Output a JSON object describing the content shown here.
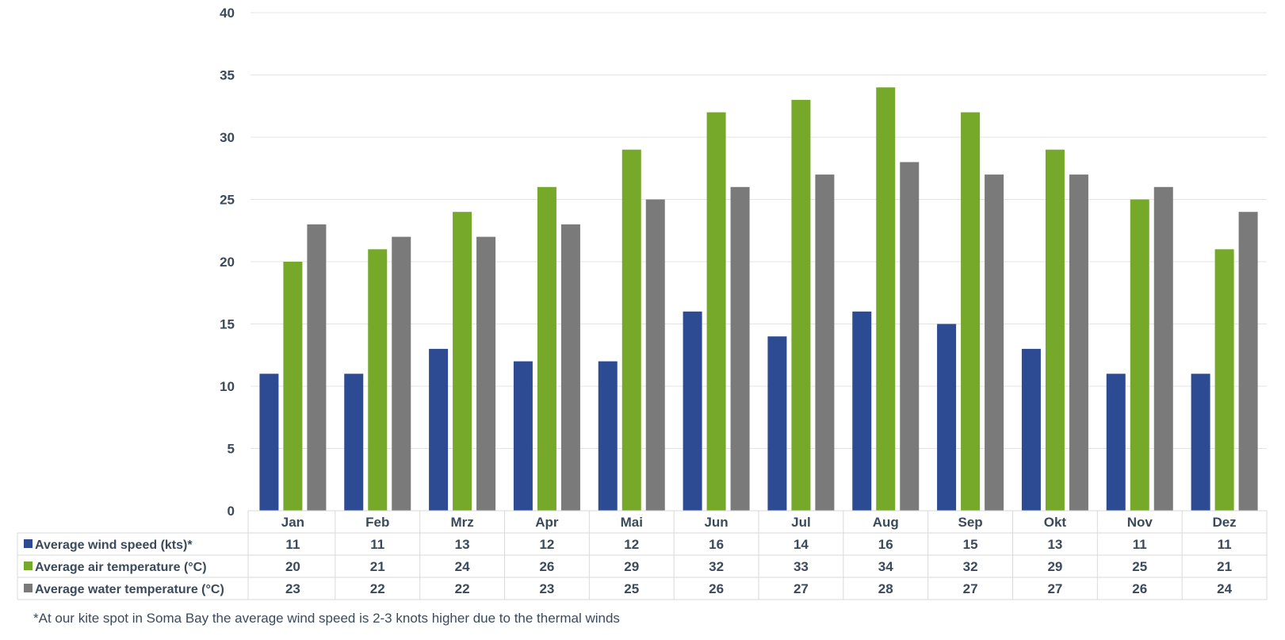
{
  "colors": {
    "wind": "#2c4b93",
    "air": "#76a82a",
    "water": "#7a7a7a",
    "text": "#3a4a5c",
    "grid": "#e3e3e3",
    "table_border": "#d9d9d9"
  },
  "chart_data": {
    "type": "bar",
    "categories": [
      "Jan",
      "Feb",
      "Mrz",
      "Apr",
      "Mai",
      "Jun",
      "Jul",
      "Aug",
      "Sep",
      "Okt",
      "Nov",
      "Dez"
    ],
    "series": [
      {
        "name": "Average wind speed (kts)*",
        "color": "#2c4b93",
        "values": [
          11,
          11,
          13,
          12,
          12,
          16,
          14,
          16,
          15,
          13,
          11,
          11
        ]
      },
      {
        "name": "Average air temperature (°C)",
        "color": "#76a82a",
        "values": [
          20,
          21,
          24,
          26,
          29,
          32,
          33,
          34,
          32,
          29,
          25,
          21
        ]
      },
      {
        "name": "Average water temperature (°C)",
        "color": "#7a7a7a",
        "values": [
          23,
          22,
          22,
          23,
          25,
          26,
          27,
          28,
          27,
          27,
          26,
          24
        ]
      }
    ],
    "ylim": [
      0,
      40
    ],
    "yticks": [
      0,
      5,
      10,
      15,
      20,
      25,
      30,
      35,
      40
    ],
    "grid": true,
    "legend": "data-table"
  },
  "footnote": "*At our kite spot in Soma Bay the average wind speed is 2-3 knots higher due to the thermal winds"
}
